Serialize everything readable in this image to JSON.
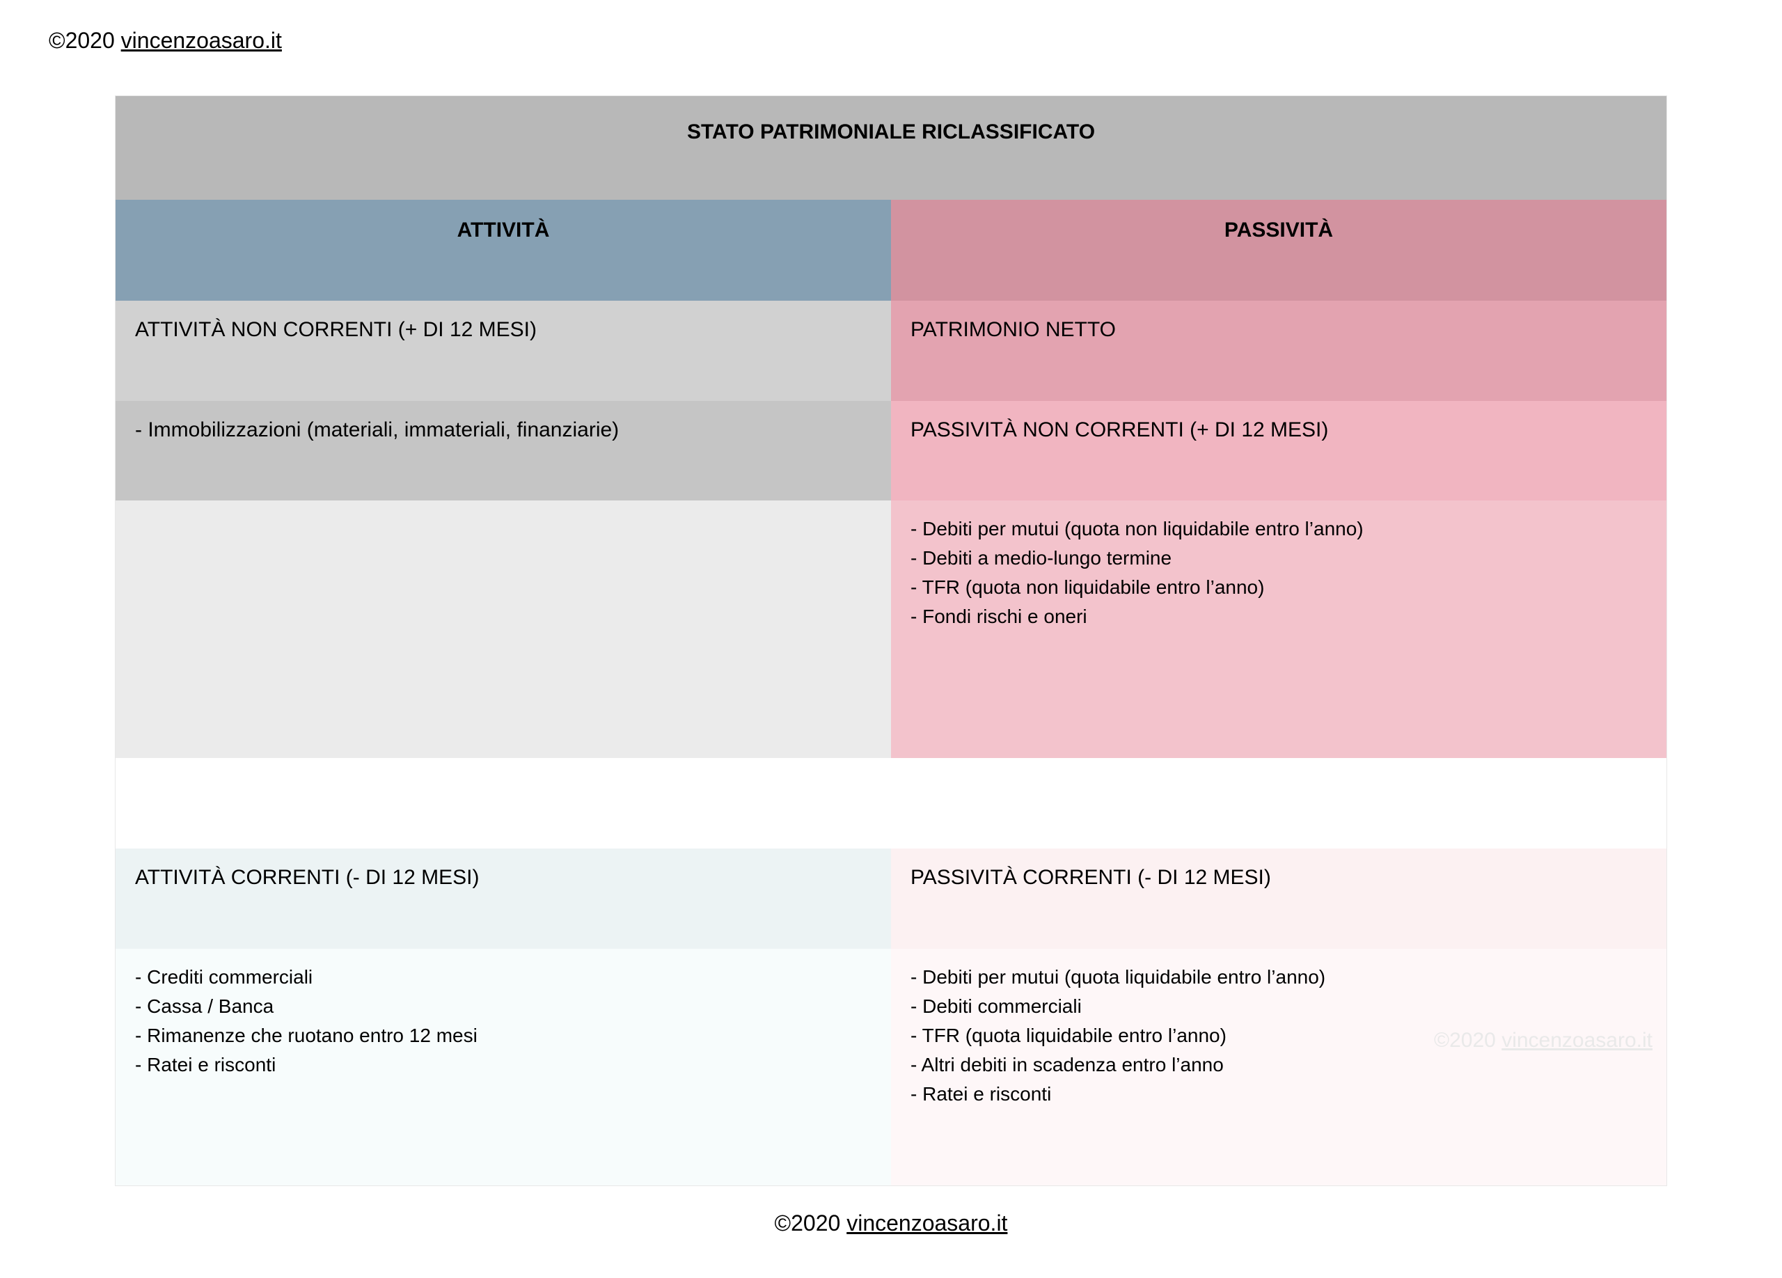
{
  "copyright": {
    "prefix": "©2020 ",
    "site": "vincenzoasaro.it"
  },
  "table": {
    "title": "STATO PATRIMONIALE RICLASSIFICATO",
    "left_header": "ATTIVITÀ",
    "right_header": "PASSIVITÀ",
    "rows": {
      "r1": {
        "left": "ATTIVITÀ NON CORRENTI (+ DI 12 MESI)",
        "right": "PATRIMONIO NETTO"
      },
      "r2": {
        "left": "- Immobilizzazioni (materiali, immateriali, finanziarie)",
        "right": "PASSIVITÀ NON CORRENTI (+ DI 12 MESI)"
      },
      "r3": {
        "left": "",
        "right": "- Debiti per mutui (quota non liquidabile entro l’anno)\n- Debiti a medio-lungo termine\n- TFR (quota non liquidabile entro l’anno)\n- Fondi rischi e oneri"
      },
      "r4": {
        "left": "",
        "right": ""
      },
      "r5": {
        "left": "ATTIVITÀ CORRENTI (- DI 12 MESI)",
        "right": "PASSIVITÀ CORRENTI (- DI 12 MESI)"
      },
      "r6": {
        "left": "- Crediti commerciali\n- Cassa / Banca\n- Rimanenze che ruotano entro 12 mesi\n- Ratei e risconti",
        "right": "- Debiti per mutui (quota liquidabile entro l’anno)\n- Debiti commerciali\n- TFR (quota liquidabile entro l’anno)\n- Altri debiti in scadenza entro l’anno\n- Ratei e risconti"
      }
    }
  },
  "colors": {
    "title_bg": "#b8b8b8",
    "left_header_bg": "#86a0b3",
    "right_header_bg": "#d293a0",
    "left_sec_bg": "#d1d1d1",
    "right_sec_bg": "#e3a3b0",
    "left_det_bg": "#c5c5c5",
    "right_det_bg": "#f1b5c1",
    "left_tall_bg": "#ebebeb",
    "right_tall_bg": "#f3c3cc",
    "spacer_bg": "#ffffff",
    "left_sec2_bg": "#ecf3f4",
    "right_sec2_bg": "#fcf1f2",
    "left_det2_bg": "#f7fcfc",
    "right_det2_bg": "#fef7f8"
  },
  "watermark": {
    "prefix": "©2020 ",
    "site": "vincenzoasaro.it"
  }
}
